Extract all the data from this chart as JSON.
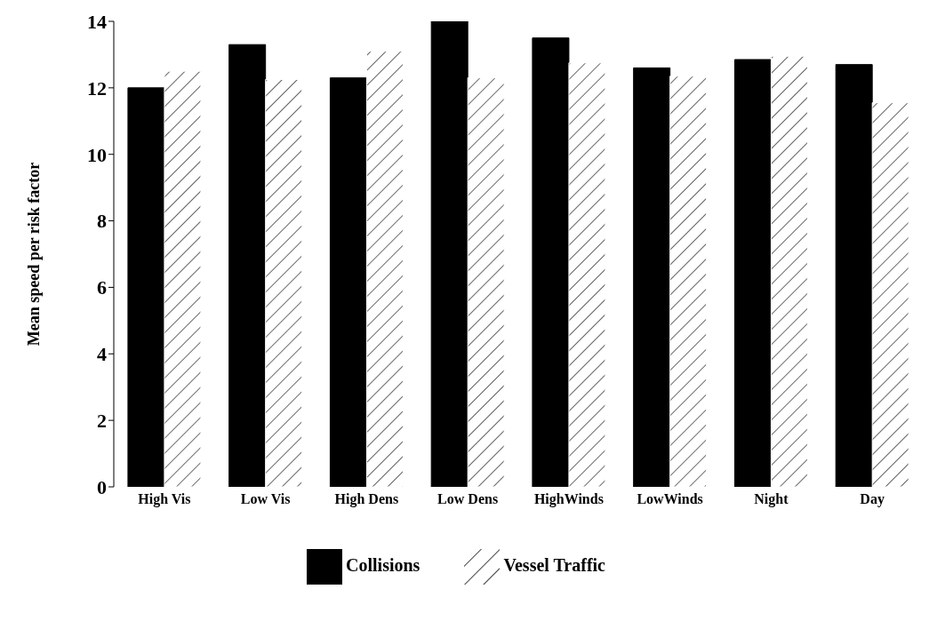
{
  "chart_data": {
    "type": "bar",
    "ylabel": "Mean speed per risk factor",
    "categories": [
      "High Vis",
      "Low Vis",
      "High Dens",
      "Low Dens",
      "HighWinds",
      "LowWinds",
      "Night",
      "Day"
    ],
    "series": [
      {
        "name": "Collisions",
        "color": "#000000",
        "values": [
          12.0,
          13.3,
          12.3,
          14.0,
          13.5,
          12.6,
          12.85,
          12.7
        ]
      },
      {
        "name": "Vessel Traffic",
        "color": "#ffffff",
        "values": [
          12.5,
          12.25,
          13.1,
          12.3,
          12.75,
          12.35,
          12.95,
          11.55
        ]
      }
    ],
    "ylim": [
      0,
      14
    ],
    "yticks": [
      0,
      2,
      4,
      6,
      8,
      10,
      12,
      14
    ],
    "grid": false,
    "legend": "bottom"
  }
}
